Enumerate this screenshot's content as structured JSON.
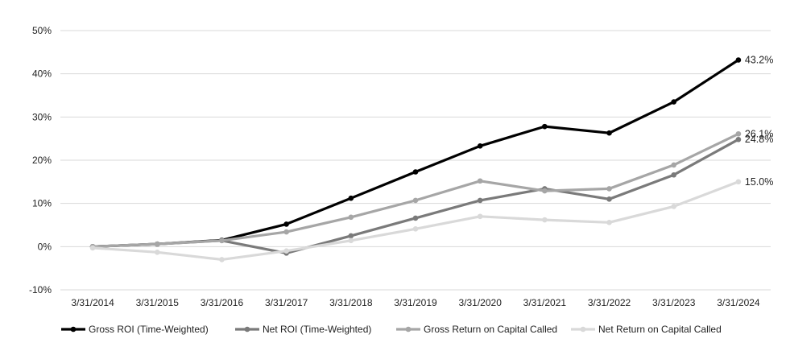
{
  "chart_data": {
    "type": "line",
    "title": "",
    "xlabel": "",
    "ylabel": "",
    "categories": [
      "3/31/2014",
      "3/31/2015",
      "3/31/2016",
      "3/31/2017",
      "3/31/2018",
      "3/31/2019",
      "3/31/2020",
      "3/31/2021",
      "3/31/2022",
      "3/31/2023",
      "3/31/2024"
    ],
    "ylim": [
      -10,
      50
    ],
    "yticks": [
      -10,
      0,
      10,
      20,
      30,
      40,
      50
    ],
    "ytick_labels": [
      "-10%",
      "0%",
      "10%",
      "20%",
      "30%",
      "40%",
      "50%"
    ],
    "grid": true,
    "legend_position": "bottom",
    "series": [
      {
        "name": "Gross ROI (Time-Weighted)",
        "color": "#000000",
        "values": [
          0.0,
          0.6,
          1.5,
          5.2,
          11.2,
          17.3,
          23.3,
          27.8,
          26.3,
          33.5,
          43.2
        ],
        "end_label": "43.2%"
      },
      {
        "name": "Net ROI (Time-Weighted)",
        "color": "#7a7a7a",
        "values": [
          0.0,
          0.6,
          1.4,
          -1.5,
          2.5,
          6.6,
          10.7,
          13.4,
          11.0,
          16.6,
          24.8
        ],
        "end_label": "24.8%"
      },
      {
        "name": "Gross Return on Capital Called",
        "color": "#a6a6a6",
        "values": [
          0.0,
          0.6,
          1.4,
          3.4,
          6.8,
          10.7,
          15.2,
          12.9,
          13.4,
          18.9,
          26.1
        ],
        "end_label": "26.1%"
      },
      {
        "name": "Net Return on Capital Called",
        "color": "#d9d9d9",
        "values": [
          -0.3,
          -1.3,
          -3.0,
          -1.0,
          1.4,
          4.1,
          7.0,
          6.2,
          5.6,
          9.3,
          15.0
        ],
        "end_label": "15.0%"
      }
    ]
  }
}
